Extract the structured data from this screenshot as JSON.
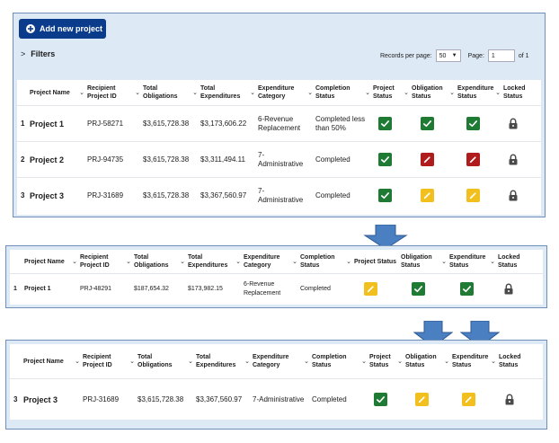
{
  "toolbar": {
    "add_label": "Add new project"
  },
  "filters": {
    "label": "Filters"
  },
  "pagination": {
    "records_label": "Records per page:",
    "records_value": "50",
    "page_label": "Page:",
    "page_value": "1",
    "of_label": "of 1"
  },
  "columns": [
    "Project Name",
    "Recipient Project ID",
    "Total Obligations",
    "Total Expenditures",
    "Expenditure Category",
    "Completion Status",
    "Project Status",
    "Obligation Status",
    "Expenditure Status",
    "Locked Status"
  ],
  "icons": {
    "status_check": "checkmark-icon",
    "status_edit": "pencil-icon",
    "locked": "lock-icon",
    "expand": "chevron-right-icon",
    "sort": "chevron-down-icon",
    "add": "plus-circle-icon",
    "arrow": "down-arrow-icon"
  },
  "colors": {
    "accent": "#0b3c8c",
    "green": "#1f7a34",
    "red": "#b01c1c",
    "yellow": "#f2c01e",
    "arrow": "#4a7fc1",
    "panel_bg": "#dde9f5"
  },
  "table1": {
    "rows": [
      {
        "num": "1",
        "name": "Project 1",
        "pid": "PRJ-58271",
        "obligations": "$3,615,728.38",
        "expenditures": "$3,173,606.22",
        "category": "6-Revenue Replacement",
        "completion": "Completed less than 50%",
        "project_status": "green",
        "obligation_status": "green",
        "expenditure_status": "green"
      },
      {
        "num": "2",
        "name": "Project 2",
        "pid": "PRJ-94735",
        "obligations": "$3,615,728.38",
        "expenditures": "$3,311,494.11",
        "category": "7-Administrative",
        "completion": "Completed",
        "project_status": "green",
        "obligation_status": "red",
        "expenditure_status": "red"
      },
      {
        "num": "3",
        "name": "Project 3",
        "pid": "PRJ-31689",
        "obligations": "$3,615,728.38",
        "expenditures": "$3,367,560.97",
        "category": "7-Administrative",
        "completion": "Completed",
        "project_status": "green",
        "obligation_status": "yellow",
        "expenditure_status": "yellow"
      }
    ]
  },
  "table2": {
    "rows": [
      {
        "num": "1",
        "name": "Project 1",
        "pid": "PRJ-48291",
        "obligations": "$187,654.32",
        "expenditures": "$173,982.15",
        "category": "6-Revenue Replacement",
        "completion": "Completed",
        "project_status": "yellow",
        "obligation_status": "green",
        "expenditure_status": "green"
      }
    ]
  },
  "table3": {
    "rows": [
      {
        "num": "3",
        "name": "Project 3",
        "pid": "PRJ-31689",
        "obligations": "$3,615,728.38",
        "expenditures": "$3,367,560.97",
        "category": "7-Administrative",
        "completion": "Completed",
        "project_status": "green",
        "obligation_status": "yellow",
        "expenditure_status": "yellow"
      }
    ]
  }
}
